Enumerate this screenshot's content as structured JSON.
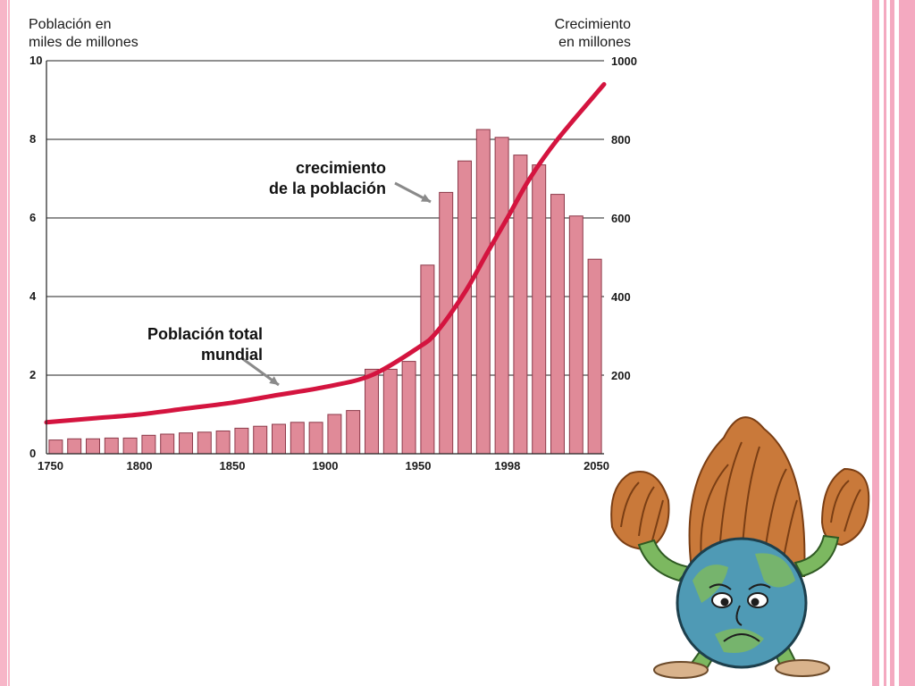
{
  "left_axis_title": "Población en\nmiles de millones",
  "right_axis_title": "Crecimiento\nen millones",
  "annotation_growth": "crecimiento\nde la población",
  "annotation_total": "Población total\nmundial",
  "colors": {
    "bar_fill": "#e08a98",
    "bar_stroke": "#8c3a4a",
    "line": "#d4143f",
    "arrow": "#8a8a8a",
    "side_stripe": "#f4a9c0"
  },
  "chart_data": {
    "type": "bar",
    "x_range": [
      1750,
      2050
    ],
    "x_ticks": [
      "1750",
      "1800",
      "1850",
      "1900",
      "1950",
      "1998",
      "2050"
    ],
    "y_left": {
      "ticks": [
        "0",
        "2",
        "4",
        "6",
        "8",
        "10"
      ],
      "range": [
        0,
        10
      ]
    },
    "y_right": {
      "ticks": [
        "200",
        "400",
        "600",
        "800",
        "1000"
      ],
      "range": [
        0,
        1000
      ]
    },
    "grid": true,
    "series": [
      {
        "type": "bar",
        "axis": "right",
        "x": [
          1755,
          1765,
          1775,
          1785,
          1795,
          1805,
          1815,
          1825,
          1835,
          1845,
          1855,
          1865,
          1875,
          1885,
          1895,
          1905,
          1915,
          1925,
          1935,
          1945,
          1955,
          1965,
          1975,
          1985,
          1995,
          2005,
          2015,
          2025,
          2035,
          2045
        ],
        "values": [
          35,
          38,
          38,
          40,
          40,
          47,
          50,
          53,
          55,
          58,
          65,
          70,
          75,
          80,
          80,
          100,
          110,
          215,
          215,
          235,
          480,
          665,
          745,
          825,
          805,
          760,
          735,
          660,
          605,
          495
        ]
      },
      {
        "type": "line",
        "axis": "left",
        "x": [
          1750,
          1775,
          1800,
          1825,
          1850,
          1875,
          1900,
          1925,
          1950,
          1960,
          1975,
          1987,
          1998,
          2010,
          2025,
          2050
        ],
        "values": [
          0.8,
          0.9,
          1.0,
          1.15,
          1.3,
          1.5,
          1.7,
          2.0,
          2.7,
          3.1,
          4.1,
          5.1,
          6.0,
          7.0,
          8.0,
          9.4
        ]
      }
    ]
  }
}
